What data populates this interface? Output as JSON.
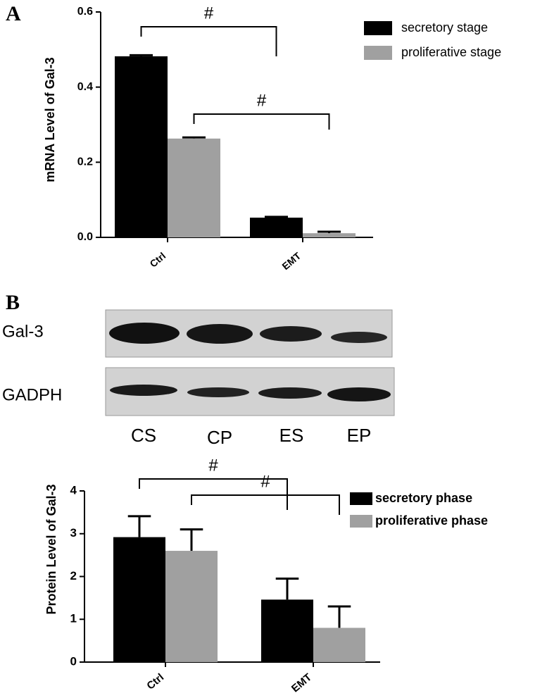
{
  "panel_labels": [
    "A",
    "B"
  ],
  "chart_data": [
    {
      "type": "bar",
      "y_label": "mRNA Level of Gal-3",
      "categories": [
        "Ctrl",
        "EMT"
      ],
      "series": [
        {
          "name": "secretory stage",
          "color": "#000000",
          "values": [
            0.482,
            0.0525
          ],
          "errors": [
            0.003,
            0.002
          ]
        },
        {
          "name": "proliferative stage",
          "color": "#a0a0a0",
          "values": [
            0.263,
            0.011
          ],
          "errors": [
            0.003,
            0.004
          ]
        }
      ],
      "ylim": [
        0,
        0.6
      ],
      "yticks": [
        {
          "value": 0,
          "label": "0.0"
        },
        0.2,
        0.4,
        0.6
      ],
      "annotations": [
        "#",
        "#"
      ]
    },
    {
      "type": "bar",
      "y_label": "Protein Level of Gal-3",
      "categories": [
        "Ctrl",
        "EMT"
      ],
      "series": [
        {
          "name": "secretory phase",
          "color": "#000000",
          "values": [
            2.92,
            1.46
          ],
          "errors": [
            0.49,
            0.49
          ]
        },
        {
          "name": "proliferative phase",
          "color": "#a0a0a0",
          "values": [
            2.6,
            0.8
          ],
          "errors": [
            0.5,
            0.5
          ]
        }
      ],
      "ylim": [
        0,
        4
      ],
      "yticks": [
        0,
        1,
        2,
        3,
        4
      ],
      "annotations": [
        "#",
        "#"
      ]
    }
  ],
  "blot": {
    "rows": [
      "Gal-3",
      "GADPH"
    ],
    "lanes": [
      "CS",
      "CP",
      "ES",
      "EP"
    ]
  }
}
